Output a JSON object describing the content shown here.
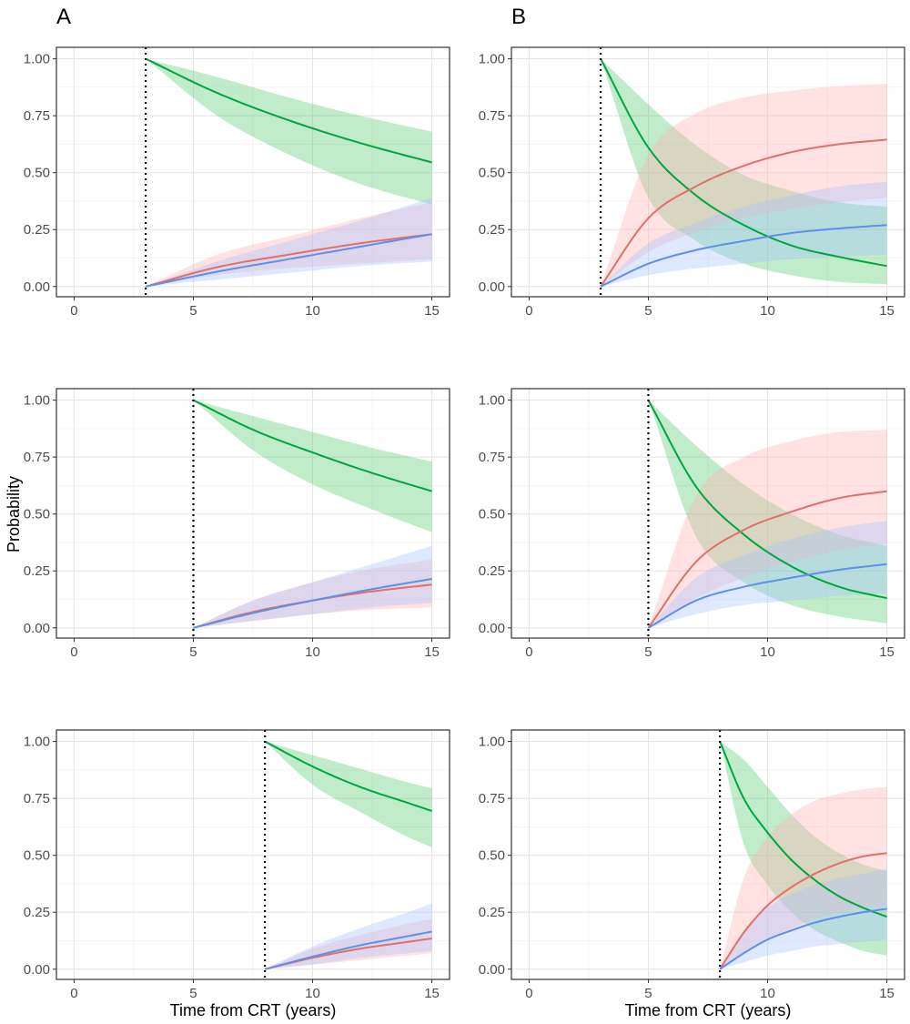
{
  "figure": {
    "column_labels": [
      "A",
      "B"
    ],
    "xlabel": "Time from CRT (years)",
    "ylabel": "Probability",
    "colors": {
      "green": "#00a53d",
      "red": "#e0706a",
      "blue": "#5f8fe6",
      "green_band": "#3cc45a",
      "red_band": "#ffb3b0",
      "blue_band": "#a9c2ff"
    }
  },
  "chart_data": [
    {
      "type": "line",
      "column": "A",
      "row": 1,
      "title": "",
      "xlabel": "",
      "ylabel": "",
      "xlim": [
        0,
        15
      ],
      "ylim": [
        0,
        1
      ],
      "x_ticks": [
        "0",
        "5",
        "10",
        "15"
      ],
      "y_ticks": [
        "0.00",
        "0.25",
        "0.50",
        "0.75",
        "1.00"
      ],
      "grid": true,
      "start_time": 3,
      "series": [
        {
          "name": "green",
          "color": "#00a53d",
          "x": [
            3,
            6,
            9,
            12,
            15
          ],
          "values": [
            1.0,
            0.85,
            0.73,
            0.63,
            0.545
          ],
          "lower": [
            1.0,
            0.75,
            0.58,
            0.45,
            0.36
          ],
          "upper": [
            1.0,
            0.92,
            0.83,
            0.75,
            0.68
          ]
        },
        {
          "name": "red",
          "color": "#e0706a",
          "x": [
            3,
            6,
            9,
            12,
            15
          ],
          "values": [
            0.0,
            0.085,
            0.14,
            0.19,
            0.23
          ],
          "lower": [
            0.0,
            0.05,
            0.08,
            0.1,
            0.12
          ],
          "upper": [
            0.0,
            0.14,
            0.22,
            0.3,
            0.37
          ]
        },
        {
          "name": "blue",
          "color": "#5f8fe6",
          "x": [
            3,
            6,
            9,
            12,
            15
          ],
          "values": [
            0.0,
            0.065,
            0.12,
            0.175,
            0.23
          ],
          "lower": [
            0.0,
            0.03,
            0.06,
            0.09,
            0.11
          ],
          "upper": [
            0.0,
            0.11,
            0.2,
            0.29,
            0.39
          ]
        }
      ]
    },
    {
      "type": "line",
      "column": "B",
      "row": 1,
      "title": "",
      "xlabel": "",
      "ylabel": "",
      "xlim": [
        0,
        15
      ],
      "ylim": [
        0,
        1
      ],
      "x_ticks": [
        "0",
        "5",
        "10",
        "15"
      ],
      "y_ticks": [
        "0.00",
        "0.25",
        "0.50",
        "0.75",
        "1.00"
      ],
      "grid": true,
      "start_time": 3,
      "series": [
        {
          "name": "green",
          "color": "#00a53d",
          "x": [
            3,
            5,
            7,
            9,
            11,
            13,
            15
          ],
          "values": [
            1.0,
            0.61,
            0.4,
            0.27,
            0.18,
            0.13,
            0.09
          ],
          "lower": [
            1.0,
            0.39,
            0.2,
            0.1,
            0.05,
            0.02,
            0.01
          ],
          "upper": [
            1.0,
            0.8,
            0.62,
            0.49,
            0.42,
            0.37,
            0.35
          ]
        },
        {
          "name": "red",
          "color": "#e0706a",
          "x": [
            3,
            5,
            7,
            9,
            11,
            13,
            15
          ],
          "values": [
            0.0,
            0.3,
            0.44,
            0.53,
            0.59,
            0.625,
            0.645
          ],
          "lower": [
            0.0,
            0.15,
            0.24,
            0.3,
            0.34,
            0.37,
            0.39
          ],
          "upper": [
            0.0,
            0.58,
            0.76,
            0.83,
            0.86,
            0.88,
            0.89
          ]
        },
        {
          "name": "blue",
          "color": "#5f8fe6",
          "x": [
            3,
            5,
            7,
            9,
            11,
            13,
            15
          ],
          "values": [
            0.0,
            0.1,
            0.16,
            0.2,
            0.235,
            0.255,
            0.27
          ],
          "lower": [
            0.0,
            0.05,
            0.08,
            0.1,
            0.12,
            0.13,
            0.14
          ],
          "upper": [
            0.0,
            0.19,
            0.28,
            0.35,
            0.4,
            0.44,
            0.46
          ]
        }
      ]
    },
    {
      "type": "line",
      "column": "A",
      "row": 2,
      "title": "",
      "xlabel": "",
      "ylabel": "",
      "xlim": [
        0,
        15
      ],
      "ylim": [
        0,
        1
      ],
      "x_ticks": [
        "0",
        "5",
        "10",
        "15"
      ],
      "y_ticks": [
        "0.00",
        "0.25",
        "0.50",
        "0.75",
        "1.00"
      ],
      "grid": true,
      "start_time": 5,
      "series": [
        {
          "name": "green",
          "color": "#00a53d",
          "x": [
            5,
            7.5,
            10,
            12.5,
            15
          ],
          "values": [
            1.0,
            0.87,
            0.77,
            0.68,
            0.6
          ],
          "lower": [
            1.0,
            0.78,
            0.63,
            0.52,
            0.42
          ],
          "upper": [
            1.0,
            0.93,
            0.86,
            0.79,
            0.73
          ]
        },
        {
          "name": "red",
          "color": "#e0706a",
          "x": [
            5,
            7.5,
            10,
            12.5,
            15
          ],
          "values": [
            0.0,
            0.07,
            0.12,
            0.16,
            0.19
          ],
          "lower": [
            0.0,
            0.03,
            0.06,
            0.08,
            0.09
          ],
          "upper": [
            0.0,
            0.12,
            0.2,
            0.26,
            0.3
          ]
        },
        {
          "name": "blue",
          "color": "#5f8fe6",
          "x": [
            5,
            7.5,
            10,
            12.5,
            15
          ],
          "values": [
            0.0,
            0.065,
            0.12,
            0.17,
            0.215
          ],
          "lower": [
            0.0,
            0.03,
            0.06,
            0.09,
            0.11
          ],
          "upper": [
            0.0,
            0.12,
            0.2,
            0.28,
            0.36
          ]
        }
      ]
    },
    {
      "type": "line",
      "column": "B",
      "row": 2,
      "title": "",
      "xlabel": "",
      "ylabel": "",
      "xlim": [
        0,
        15
      ],
      "ylim": [
        0,
        1
      ],
      "x_ticks": [
        "0",
        "5",
        "10",
        "15"
      ],
      "y_ticks": [
        "0.00",
        "0.25",
        "0.50",
        "0.75",
        "1.00"
      ],
      "grid": true,
      "start_time": 5,
      "series": [
        {
          "name": "green",
          "color": "#00a53d",
          "x": [
            5,
            7,
            9,
            11,
            13,
            15
          ],
          "values": [
            1.0,
            0.62,
            0.41,
            0.27,
            0.18,
            0.13
          ],
          "lower": [
            1.0,
            0.4,
            0.2,
            0.1,
            0.05,
            0.02
          ],
          "upper": [
            1.0,
            0.8,
            0.63,
            0.5,
            0.41,
            0.36
          ]
        },
        {
          "name": "red",
          "color": "#e0706a",
          "x": [
            5,
            7,
            9,
            11,
            13,
            15
          ],
          "values": [
            0.0,
            0.29,
            0.43,
            0.51,
            0.57,
            0.6
          ],
          "lower": [
            0.0,
            0.13,
            0.22,
            0.29,
            0.34,
            0.37
          ],
          "upper": [
            0.0,
            0.58,
            0.75,
            0.82,
            0.86,
            0.87
          ]
        },
        {
          "name": "blue",
          "color": "#5f8fe6",
          "x": [
            5,
            7,
            9,
            11,
            13,
            15
          ],
          "values": [
            0.0,
            0.12,
            0.18,
            0.22,
            0.255,
            0.28
          ],
          "lower": [
            0.0,
            0.06,
            0.1,
            0.12,
            0.14,
            0.15
          ],
          "upper": [
            0.0,
            0.22,
            0.32,
            0.39,
            0.44,
            0.47
          ]
        }
      ]
    },
    {
      "type": "line",
      "column": "A",
      "row": 3,
      "title": "",
      "xlabel": "Time from CRT (years)",
      "ylabel": "",
      "xlim": [
        0,
        15
      ],
      "ylim": [
        0,
        1
      ],
      "x_ticks": [
        "0",
        "5",
        "10",
        "15"
      ],
      "y_ticks": [
        "0.00",
        "0.25",
        "0.50",
        "0.75",
        "1.00"
      ],
      "grid": true,
      "start_time": 8,
      "series": [
        {
          "name": "green",
          "color": "#00a53d",
          "x": [
            8,
            10,
            12,
            14,
            15
          ],
          "values": [
            1.0,
            0.89,
            0.8,
            0.73,
            0.695
          ],
          "lower": [
            1.0,
            0.81,
            0.69,
            0.58,
            0.535
          ],
          "upper": [
            1.0,
            0.94,
            0.88,
            0.82,
            0.795
          ]
        },
        {
          "name": "red",
          "color": "#e0706a",
          "x": [
            8,
            10,
            12,
            14,
            15
          ],
          "values": [
            0.0,
            0.05,
            0.09,
            0.12,
            0.135
          ],
          "lower": [
            0.0,
            0.02,
            0.04,
            0.06,
            0.07
          ],
          "upper": [
            0.0,
            0.09,
            0.15,
            0.2,
            0.22
          ]
        },
        {
          "name": "blue",
          "color": "#5f8fe6",
          "x": [
            8,
            10,
            12,
            14,
            15
          ],
          "values": [
            0.0,
            0.055,
            0.105,
            0.145,
            0.165
          ],
          "lower": [
            0.0,
            0.02,
            0.05,
            0.07,
            0.08
          ],
          "upper": [
            0.0,
            0.1,
            0.18,
            0.25,
            0.29
          ]
        }
      ]
    },
    {
      "type": "line",
      "column": "B",
      "row": 3,
      "title": "",
      "xlabel": "Time from CRT (years)",
      "ylabel": "",
      "xlim": [
        0,
        15
      ],
      "ylim": [
        0,
        1
      ],
      "x_ticks": [
        "0",
        "5",
        "10",
        "15"
      ],
      "y_ticks": [
        "0.00",
        "0.25",
        "0.50",
        "0.75",
        "1.00"
      ],
      "grid": true,
      "start_time": 8,
      "series": [
        {
          "name": "green",
          "color": "#00a53d",
          "x": [
            8,
            9,
            10,
            11,
            12,
            13,
            14,
            15
          ],
          "values": [
            1.0,
            0.75,
            0.6,
            0.48,
            0.39,
            0.32,
            0.27,
            0.23
          ],
          "lower": [
            1.0,
            0.55,
            0.37,
            0.25,
            0.17,
            0.12,
            0.08,
            0.06
          ],
          "upper": [
            1.0,
            0.92,
            0.8,
            0.68,
            0.58,
            0.51,
            0.46,
            0.43
          ]
        },
        {
          "name": "red",
          "color": "#e0706a",
          "x": [
            8,
            9,
            10,
            11,
            12,
            13,
            14,
            15
          ],
          "values": [
            0.0,
            0.16,
            0.28,
            0.36,
            0.42,
            0.465,
            0.495,
            0.51
          ],
          "lower": [
            0.0,
            0.07,
            0.13,
            0.18,
            0.22,
            0.25,
            0.27,
            0.28
          ],
          "upper": [
            0.0,
            0.4,
            0.58,
            0.68,
            0.74,
            0.77,
            0.79,
            0.8
          ]
        },
        {
          "name": "blue",
          "color": "#5f8fe6",
          "x": [
            8,
            9,
            10,
            11,
            12,
            13,
            14,
            15
          ],
          "values": [
            0.0,
            0.07,
            0.13,
            0.17,
            0.205,
            0.23,
            0.25,
            0.265
          ],
          "lower": [
            0.0,
            0.03,
            0.06,
            0.08,
            0.1,
            0.11,
            0.12,
            0.13
          ],
          "upper": [
            0.0,
            0.17,
            0.27,
            0.33,
            0.37,
            0.4,
            0.42,
            0.44
          ]
        }
      ]
    }
  ]
}
